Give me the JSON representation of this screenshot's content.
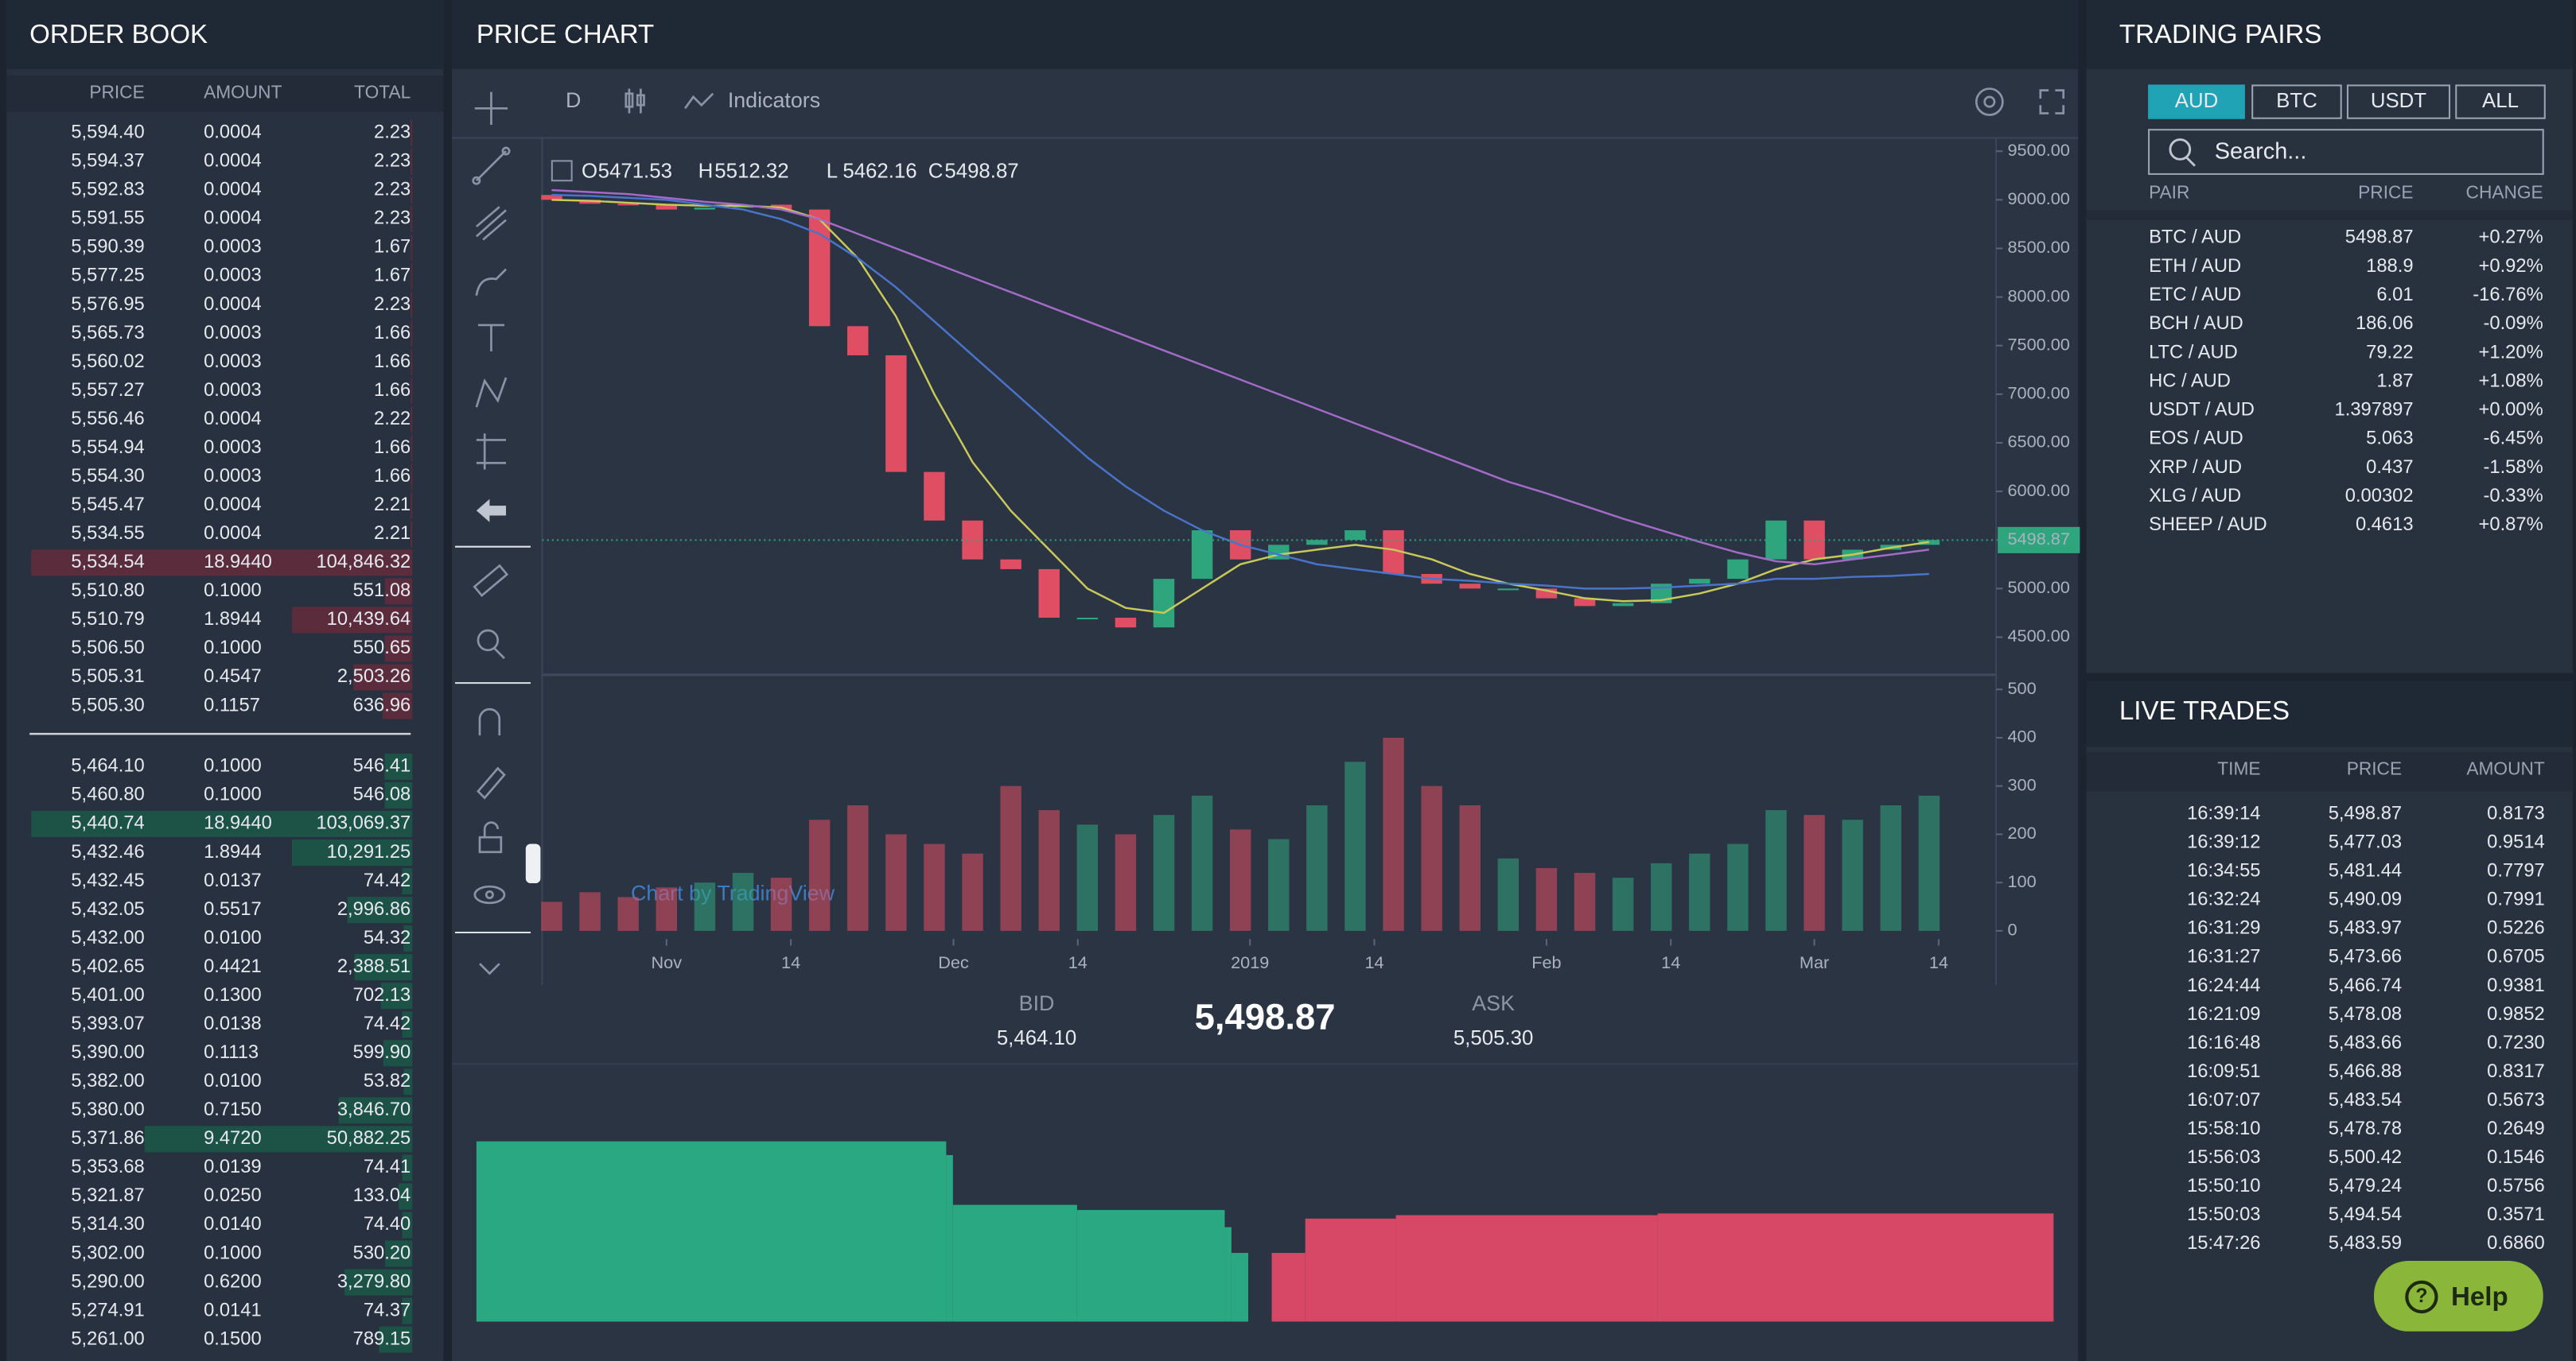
{
  "colors": {
    "up": "#4fc08d",
    "down": "#e5566b",
    "ask_bar": "#5a2c3c",
    "bid_bar": "#1d5247"
  },
  "order_book": {
    "title": "ORDER BOOK",
    "columns": [
      "PRICE",
      "AMOUNT",
      "TOTAL"
    ],
    "asks": [
      [
        "5,594.40",
        "0.0004",
        "2.23"
      ],
      [
        "5,594.37",
        "0.0004",
        "2.23"
      ],
      [
        "5,592.83",
        "0.0004",
        "2.23"
      ],
      [
        "5,591.55",
        "0.0004",
        "2.23"
      ],
      [
        "5,590.39",
        "0.0003",
        "1.67"
      ],
      [
        "5,577.25",
        "0.0003",
        "1.67"
      ],
      [
        "5,576.95",
        "0.0004",
        "2.23"
      ],
      [
        "5,565.73",
        "0.0003",
        "1.66"
      ],
      [
        "5,560.02",
        "0.0003",
        "1.66"
      ],
      [
        "5,557.27",
        "0.0003",
        "1.66"
      ],
      [
        "5,556.46",
        "0.0004",
        "2.22"
      ],
      [
        "5,554.94",
        "0.0003",
        "1.66"
      ],
      [
        "5,554.30",
        "0.0003",
        "1.66"
      ],
      [
        "5,545.47",
        "0.0004",
        "2.21"
      ],
      [
        "5,534.55",
        "0.0004",
        "2.21"
      ],
      [
        "5,534.54",
        "18.9440",
        "104,846.32"
      ],
      [
        "5,510.80",
        "0.1000",
        "551.08"
      ],
      [
        "5,510.79",
        "1.8944",
        "10,439.64"
      ],
      [
        "5,506.50",
        "0.1000",
        "550.65"
      ],
      [
        "5,505.31",
        "0.4547",
        "2,503.26"
      ],
      [
        "5,505.30",
        "0.1157",
        "636.96"
      ]
    ],
    "bids": [
      [
        "5,464.10",
        "0.1000",
        "546.41"
      ],
      [
        "5,460.80",
        "0.1000",
        "546.08"
      ],
      [
        "5,440.74",
        "18.9440",
        "103,069.37"
      ],
      [
        "5,432.46",
        "1.8944",
        "10,291.25"
      ],
      [
        "5,432.45",
        "0.0137",
        "74.42"
      ],
      [
        "5,432.05",
        "0.5517",
        "2,996.86"
      ],
      [
        "5,432.00",
        "0.0100",
        "54.32"
      ],
      [
        "5,402.65",
        "0.4421",
        "2,388.51"
      ],
      [
        "5,401.00",
        "0.1300",
        "702.13"
      ],
      [
        "5,393.07",
        "0.0138",
        "74.42"
      ],
      [
        "5,390.00",
        "0.1113",
        "599.90"
      ],
      [
        "5,382.00",
        "0.0100",
        "53.82"
      ],
      [
        "5,380.00",
        "0.7150",
        "3,846.70"
      ],
      [
        "5,371.86",
        "9.4720",
        "50,882.25"
      ],
      [
        "5,353.68",
        "0.0139",
        "74.41"
      ],
      [
        "5,321.87",
        "0.0250",
        "133.04"
      ],
      [
        "5,314.30",
        "0.0140",
        "74.40"
      ],
      [
        "5,302.00",
        "0.1000",
        "530.20"
      ],
      [
        "5,290.00",
        "0.6200",
        "3,279.80"
      ],
      [
        "5,274.91",
        "0.0141",
        "74.37"
      ],
      [
        "5,261.00",
        "0.1500",
        "789.15"
      ]
    ]
  },
  "price_chart": {
    "title": "PRICE CHART",
    "interval": "D",
    "indicators": "Indicators",
    "ohlc": [
      {
        "label": "O",
        "value": "5471.53"
      },
      {
        "label": "H",
        "value": "5512.32"
      },
      {
        "label": "L",
        "value": "5462.16"
      },
      {
        "label": "C",
        "value": "5498.87"
      }
    ],
    "market": {
      "bid_label": "BID",
      "bid": "5,464.10",
      "last": "5,498.87",
      "ask_label": "ASK",
      "ask": "5,505.30"
    }
  },
  "chart_data": [
    {
      "type": "candlestick",
      "watermark": "Chart by TradingView",
      "up_color": "#2fa57e",
      "down_color": "#e04e63",
      "x": [
        -12,
        -8,
        -4,
        0,
        4,
        8,
        12,
        16,
        20,
        24,
        28,
        32,
        36,
        40,
        44,
        48,
        52,
        56,
        60,
        64,
        68,
        72,
        76,
        80,
        84,
        88,
        92,
        96,
        100,
        104,
        108,
        112,
        116,
        120,
        124,
        128,
        132
      ],
      "open": [
        9050,
        9000,
        8960,
        8950,
        8900,
        8920,
        8950,
        8900,
        7700,
        7400,
        6200,
        5700,
        5300,
        5200,
        4700,
        4700,
        4600,
        5100,
        5600,
        5300,
        5450,
        5500,
        5600,
        5150,
        5050,
        5000,
        5000,
        4900,
        4820,
        4850,
        5050,
        5100,
        5300,
        5700,
        5300,
        5400,
        5450
      ],
      "close": [
        9000,
        8960,
        8950,
        8900,
        8920,
        8950,
        8900,
        7700,
        7400,
        6200,
        5700,
        5300,
        5200,
        4700,
        4700,
        4600,
        5100,
        5600,
        5300,
        5450,
        5500,
        5600,
        5150,
        5050,
        5000,
        5000,
        4900,
        4820,
        4850,
        5050,
        5100,
        5300,
        5700,
        5300,
        5400,
        5450,
        5500
      ],
      "volume": [
        60,
        80,
        70,
        90,
        100,
        120,
        110,
        230,
        260,
        200,
        180,
        160,
        300,
        250,
        220,
        200,
        240,
        280,
        210,
        190,
        260,
        350,
        400,
        300,
        260,
        150,
        130,
        120,
        110,
        140,
        160,
        180,
        250,
        240,
        230,
        260,
        280
      ],
      "series": [
        {
          "color": "#c9c95a",
          "values": [
            9000,
            8990,
            8970,
            8950,
            8940,
            8940,
            8920,
            8800,
            8400,
            7800,
            7000,
            6300,
            5800,
            5400,
            5000,
            4800,
            4750,
            5000,
            5250,
            5350,
            5400,
            5450,
            5400,
            5300,
            5150,
            5050,
            4980,
            4900,
            4870,
            4880,
            4950,
            5050,
            5200,
            5300,
            5350,
            5420,
            5480
          ]
        },
        {
          "color": "#4a74c9",
          "values": [
            9050,
            9040,
            9020,
            9000,
            8950,
            8900,
            8800,
            8650,
            8400,
            8100,
            7750,
            7400,
            7050,
            6700,
            6350,
            6050,
            5800,
            5600,
            5450,
            5350,
            5250,
            5200,
            5150,
            5100,
            5080,
            5050,
            5030,
            5000,
            5000,
            5010,
            5030,
            5050,
            5100,
            5100,
            5120,
            5130,
            5150
          ]
        },
        {
          "color": "#a36bc6",
          "values": [
            9100,
            9080,
            9060,
            9020,
            8980,
            8950,
            8900,
            8800,
            8650,
            8500,
            8350,
            8200,
            8050,
            7900,
            7750,
            7600,
            7450,
            7300,
            7150,
            7000,
            6850,
            6700,
            6550,
            6400,
            6250,
            6100,
            5980,
            5850,
            5720,
            5600,
            5480,
            5370,
            5280,
            5250,
            5300,
            5350,
            5400
          ]
        }
      ],
      "last": {
        "value": 5498.87,
        "label": "5498.87"
      },
      "xlim": [
        -13,
        139
      ],
      "xticks": [
        {
          "value": 0,
          "label": "Nov"
        },
        {
          "value": 13,
          "label": "14"
        },
        {
          "value": 30,
          "label": "Dec"
        },
        {
          "value": 43,
          "label": "14"
        },
        {
          "value": 61,
          "label": "2019"
        },
        {
          "value": 74,
          "label": "14"
        },
        {
          "value": 92,
          "label": "Feb"
        },
        {
          "value": 105,
          "label": "14"
        },
        {
          "value": 120,
          "label": "Mar"
        },
        {
          "value": 133,
          "label": "14"
        }
      ],
      "ylim": [
        4130,
        9620
      ],
      "yticks": [
        {
          "value": 4500,
          "label": "4500.00"
        },
        {
          "value": 5000,
          "label": "5000.00"
        },
        {
          "value": 5500,
          "label": "5500.00"
        },
        {
          "value": 6000,
          "label": "6000.00"
        },
        {
          "value": 6500,
          "label": "6500.00"
        },
        {
          "value": 7000,
          "label": "7000.00"
        },
        {
          "value": 7500,
          "label": "7500.00"
        },
        {
          "value": 8000,
          "label": "8000.00"
        },
        {
          "value": 8500,
          "label": "8500.00"
        },
        {
          "value": 9000,
          "label": "9000.00"
        },
        {
          "value": 9500,
          "label": "9500.00"
        }
      ],
      "volume_ylim": [
        0,
        510
      ],
      "volume_yticks": [
        0,
        100,
        200,
        300,
        400,
        500
      ]
    },
    {
      "type": "depth",
      "bid_color": "#2aa882",
      "ask_color": "#d64866",
      "bids": {
        "x": [
          5250,
          5390,
          5392,
          5429,
          5473,
          5475,
          5480
        ],
        "y": [
          105,
          97,
          68,
          65,
          55,
          40,
          0
        ]
      },
      "asks": {
        "x": [
          5487,
          5497,
          5524,
          5602
        ],
        "y": [
          40,
          60,
          62,
          63
        ]
      },
      "xlim": [
        5250,
        5720
      ],
      "ylim": [
        0,
        110
      ]
    }
  ],
  "trading_pairs": {
    "title": "TRADING PAIRS",
    "tabs": [
      "AUD",
      "BTC",
      "USDT",
      "ALL"
    ],
    "active_tab": 0,
    "search": "Search...",
    "columns": [
      "PAIR",
      "PRICE",
      "CHANGE"
    ],
    "rows": [
      [
        "BTC / AUD",
        "5498.87",
        "+0.27%"
      ],
      [
        "ETH / AUD",
        "188.9",
        "+0.92%"
      ],
      [
        "ETC / AUD",
        "6.01",
        "-16.76%"
      ],
      [
        "BCH / AUD",
        "186.06",
        "-0.09%"
      ],
      [
        "LTC / AUD",
        "79.22",
        "+1.20%"
      ],
      [
        "HC / AUD",
        "1.87",
        "+1.08%"
      ],
      [
        "USDT / AUD",
        "1.397897",
        "+0.00%"
      ],
      [
        "EOS / AUD",
        "5.063",
        "-6.45%"
      ],
      [
        "XRP / AUD",
        "0.437",
        "-1.58%"
      ],
      [
        "XLG / AUD",
        "0.00302",
        "-0.33%"
      ],
      [
        "SHEEP / AUD",
        "0.4613",
        "+0.87%"
      ]
    ]
  },
  "live_trades": {
    "title": "LIVE TRADES",
    "columns": [
      "TIME",
      "PRICE",
      "AMOUNT"
    ],
    "rows": [
      {
        "time": "16:39:14",
        "price": "5,498.87",
        "amount": "0.8173",
        "side": "up"
      },
      {
        "time": "16:39:12",
        "price": "5,477.03",
        "amount": "0.9514",
        "side": "down"
      },
      {
        "time": "16:34:55",
        "price": "5,481.44",
        "amount": "0.7797",
        "side": "down"
      },
      {
        "time": "16:32:24",
        "price": "5,490.09",
        "amount": "0.7991",
        "side": "up"
      },
      {
        "time": "16:31:29",
        "price": "5,483.97",
        "amount": "0.5226",
        "side": "up"
      },
      {
        "time": "16:31:27",
        "price": "5,473.66",
        "amount": "0.6705",
        "side": "up"
      },
      {
        "time": "16:24:44",
        "price": "5,466.74",
        "amount": "0.9381",
        "side": "down"
      },
      {
        "time": "16:21:09",
        "price": "5,478.08",
        "amount": "0.9852",
        "side": "down"
      },
      {
        "time": "16:16:48",
        "price": "5,483.66",
        "amount": "0.7230",
        "side": "up"
      },
      {
        "time": "16:09:51",
        "price": "5,466.88",
        "amount": "0.8317",
        "side": "down"
      },
      {
        "time": "16:07:07",
        "price": "5,483.54",
        "amount": "0.5673",
        "side": "up"
      },
      {
        "time": "15:58:10",
        "price": "5,478.78",
        "amount": "0.2649",
        "side": "down"
      },
      {
        "time": "15:56:03",
        "price": "5,500.42",
        "amount": "0.1546",
        "side": "up"
      },
      {
        "time": "15:50:10",
        "price": "5,479.24",
        "amount": "0.5756",
        "side": "down"
      },
      {
        "time": "15:50:03",
        "price": "5,494.54",
        "amount": "0.3571",
        "side": "up"
      },
      {
        "time": "15:47:26",
        "price": "5,483.59",
        "amount": "0.6860",
        "side": "up"
      }
    ]
  },
  "help": "Help"
}
